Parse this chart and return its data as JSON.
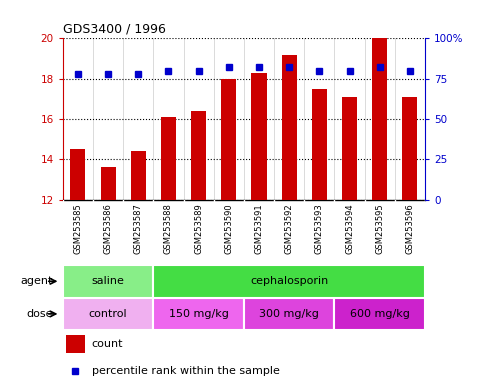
{
  "title": "GDS3400 / 1996",
  "samples": [
    "GSM253585",
    "GSM253586",
    "GSM253587",
    "GSM253588",
    "GSM253589",
    "GSM253590",
    "GSM253591",
    "GSM253592",
    "GSM253593",
    "GSM253594",
    "GSM253595",
    "GSM253596"
  ],
  "count_values": [
    14.5,
    13.6,
    14.4,
    16.1,
    16.4,
    18.0,
    18.3,
    19.2,
    17.5,
    17.1,
    20.0,
    17.1
  ],
  "percentile_values": [
    78,
    78,
    78,
    80,
    80,
    82,
    82,
    82,
    80,
    80,
    82,
    80
  ],
  "ylim_left": [
    12,
    20
  ],
  "ylim_right": [
    0,
    100
  ],
  "yticks_left": [
    12,
    14,
    16,
    18,
    20
  ],
  "yticks_right": [
    0,
    25,
    50,
    75,
    100
  ],
  "bar_color": "#cc0000",
  "dot_color": "#0000cc",
  "agent_groups": [
    {
      "label": "saline",
      "start": 0,
      "end": 3,
      "color": "#88ee88"
    },
    {
      "label": "cephalosporin",
      "start": 3,
      "end": 12,
      "color": "#44dd44"
    }
  ],
  "dose_groups": [
    {
      "label": "control",
      "start": 0,
      "end": 3,
      "color": "#f0b0f0"
    },
    {
      "label": "150 mg/kg",
      "start": 3,
      "end": 6,
      "color": "#ee66ee"
    },
    {
      "label": "300 mg/kg",
      "start": 6,
      "end": 9,
      "color": "#dd44dd"
    },
    {
      "label": "600 mg/kg",
      "start": 9,
      "end": 12,
      "color": "#cc22cc"
    }
  ],
  "legend_count_color": "#cc0000",
  "legend_dot_color": "#0000cc",
  "tick_label_color_left": "#cc0000",
  "tick_label_color_right": "#0000cc",
  "xtick_bg_color": "#d0d0d0",
  "chart_bg_color": "#ffffff",
  "grid_linestyle": "dotted",
  "grid_linewidth": 0.8,
  "grid_color": "#000000"
}
